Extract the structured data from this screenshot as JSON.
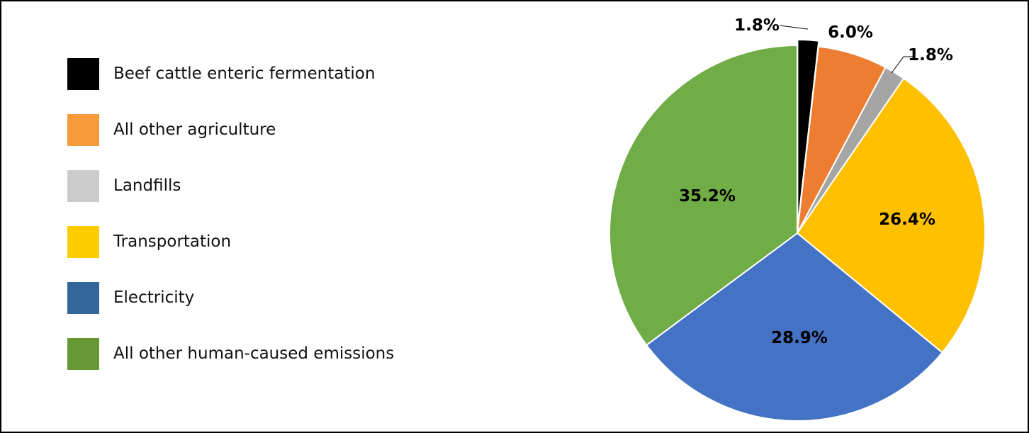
{
  "chart_data": {
    "type": "pie",
    "title": "",
    "categories": [
      "Beef cattle enteric fermentation",
      "All other agriculture",
      "Landfills",
      "Transportation",
      "Electricity",
      "All other human-caused emissions"
    ],
    "values": [
      1.8,
      6.0,
      1.8,
      26.4,
      28.9,
      35.2
    ],
    "data_labels": [
      "1.8%",
      "6.0%",
      "1.8%",
      "26.4%",
      "28.9%",
      "35.2%"
    ],
    "slice_colors": [
      "#000000",
      "#ED7D31",
      "#A5A5A5",
      "#FFC000",
      "#4472C4",
      "#70AD47"
    ],
    "legend_colors": [
      "#000000",
      "#F79A3C",
      "#CCCCCC",
      "#FFCC00",
      "#336699",
      "#669933"
    ],
    "exploded_slice": "Beef cattle enteric fermentation",
    "legend_position": "left",
    "start_angle_deg": 0,
    "direction": "clockwise"
  }
}
